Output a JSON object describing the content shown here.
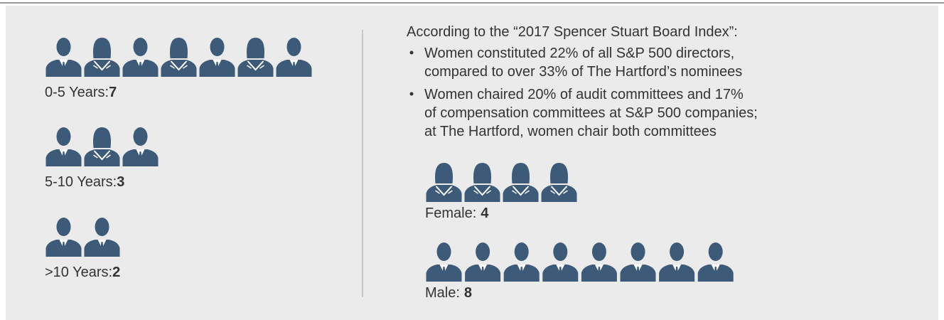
{
  "tenure": [
    {
      "label": "0-5 Years:",
      "value": 7
    },
    {
      "label": "5-10 Years:",
      "value": 3
    },
    {
      "label": ">10 Years:",
      "value": 2
    }
  ],
  "intro": "According to the “2017 Spencer Stuart Board Index”:",
  "bullets": [
    [
      "Women constituted 22% of all S&P 500 directors,",
      "compared to over 33% of The Hartford’s nominees"
    ],
    [
      "Women chaired 20% of audit committees and 17%",
      "of compensation committees at S&P 500 companies;",
      "at The Hartford, women chair both committees"
    ]
  ],
  "gender": [
    {
      "label": "Female:",
      "value": 4
    },
    {
      "label": "Male:",
      "value": 8
    }
  ]
}
